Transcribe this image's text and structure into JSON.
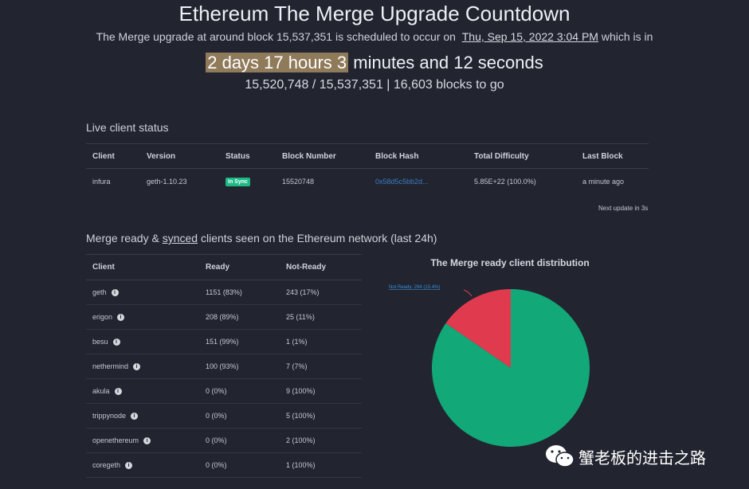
{
  "header": {
    "title": "Ethereum The Merge Upgrade Countdown",
    "sub_prefix": "The Merge upgrade at around block 15,537,351 is scheduled to occur on",
    "sub_date": "Thu, Sep 15, 2022 3:04 PM",
    "sub_suffix": "which is in",
    "countdown_highlight": "2 days 17 hours 3",
    "countdown_rest": "minutes and 12 seconds",
    "blocks": "15,520,748 / 15,537,351 | 16,603 blocks to go"
  },
  "live_status": {
    "title": "Live client status",
    "columns": [
      "Client",
      "Version",
      "Status",
      "Block Number",
      "Block Hash",
      "Total Difficulty",
      "Last Block"
    ],
    "rows": [
      {
        "client": "infura",
        "version": "geth-1.10.23",
        "status": "In Sync",
        "block_number": "15520748",
        "block_hash": "0x58d5c5bb2d...",
        "total_difficulty": "5.85E+22 (100.0%)",
        "last_block": "a minute ago"
      }
    ],
    "next_update": "Next update in 3s"
  },
  "merge_ready": {
    "title_prefix": "Merge ready & ",
    "title_link": "synced",
    "title_suffix": " clients seen on the Ethereum network (last 24h)",
    "columns": [
      "Client",
      "Ready",
      "Not-Ready"
    ],
    "rows": [
      {
        "client": "geth",
        "ready": "1151 (83%)",
        "not_ready": "243 (17%)"
      },
      {
        "client": "erigon",
        "ready": "208 (89%)",
        "not_ready": "25 (11%)"
      },
      {
        "client": "besu",
        "ready": "151 (99%)",
        "not_ready": "1 (1%)"
      },
      {
        "client": "nethermind",
        "ready": "100 (93%)",
        "not_ready": "7 (7%)"
      },
      {
        "client": "akula",
        "ready": "0 (0%)",
        "not_ready": "9 (100%)"
      },
      {
        "client": "trippynode",
        "ready": "0 (0%)",
        "not_ready": "5 (100%)"
      },
      {
        "client": "openethereum",
        "ready": "0 (0%)",
        "not_ready": "2 (100%)"
      },
      {
        "client": "coregeth",
        "ready": "0 (0%)",
        "not_ready": "1 (100%)"
      }
    ]
  },
  "chart_data": {
    "type": "pie",
    "title": "The Merge ready client distribution",
    "slices": [
      {
        "name": "Ready",
        "value": 84.6,
        "color": "#12a877"
      },
      {
        "name": "Not Ready",
        "value": 15.4,
        "color": "#e03a4e",
        "label": "Not Ready: 294 (15.4%)"
      }
    ]
  },
  "watermark": {
    "text": "蟹老板的进击之路",
    "icon": "wechat-icon"
  }
}
